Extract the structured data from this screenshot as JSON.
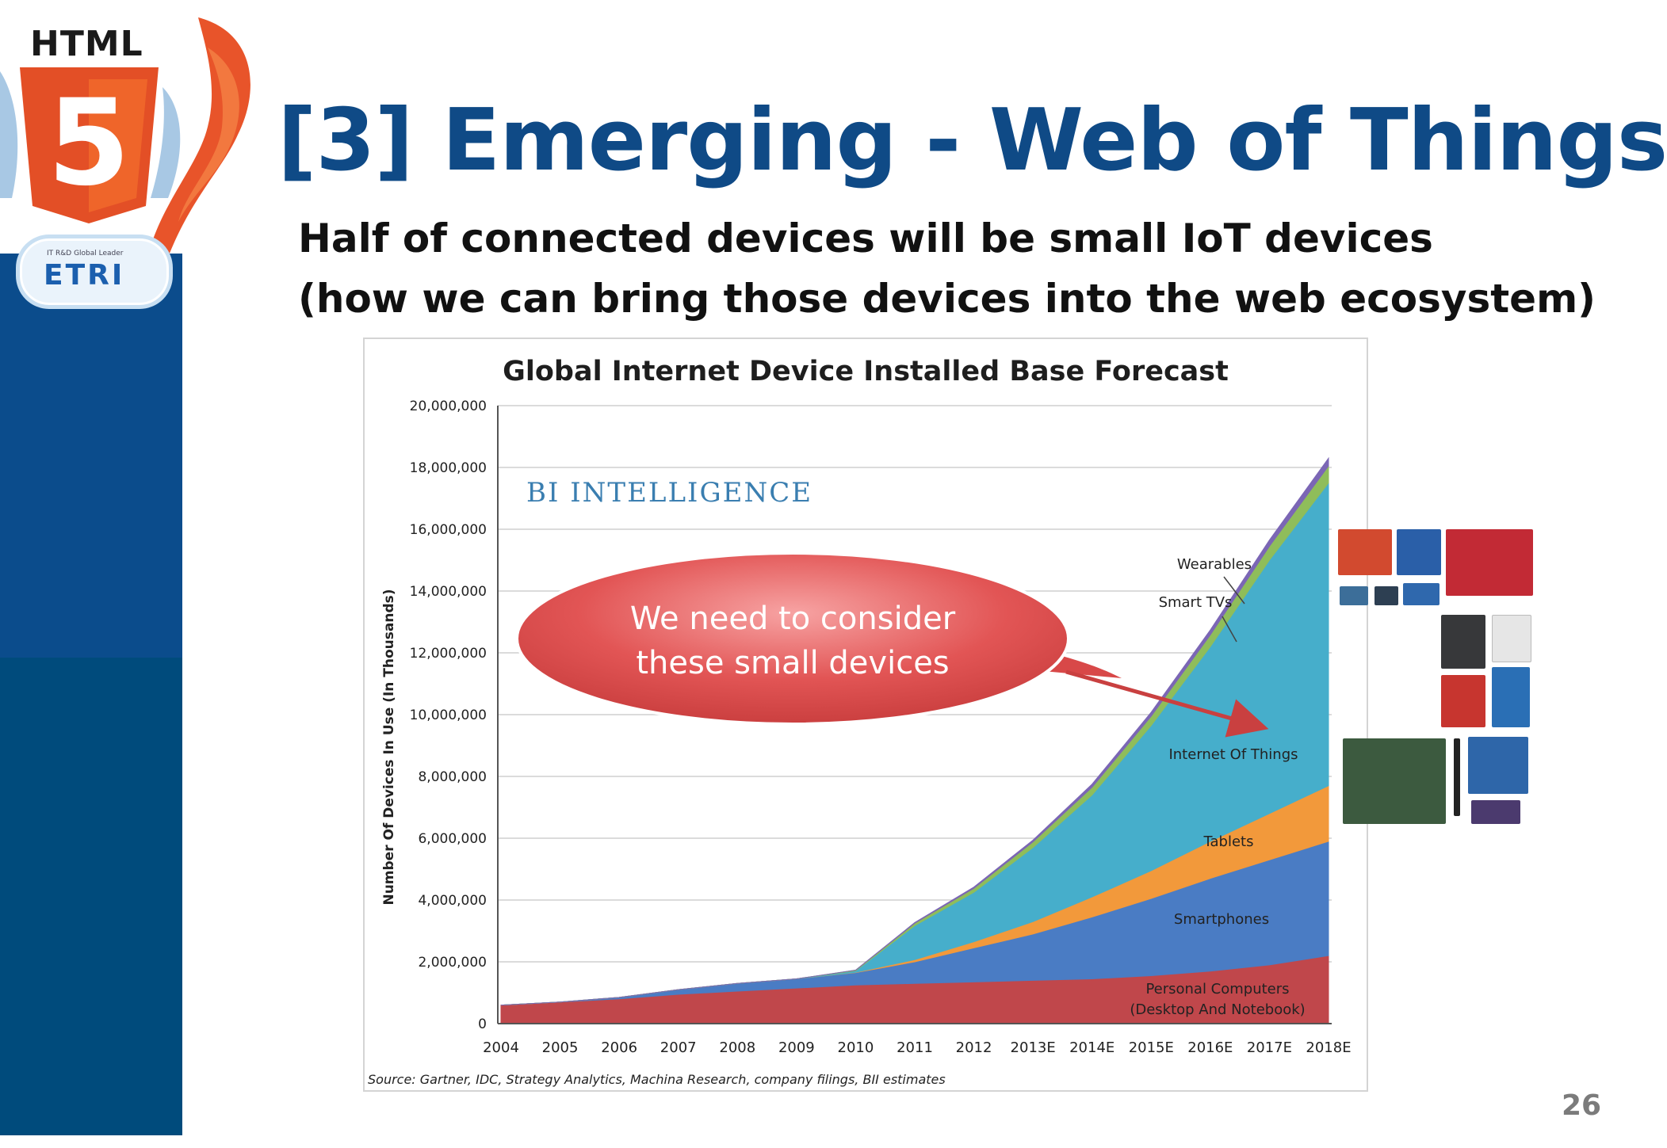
{
  "logo": {
    "html_label": "HTML",
    "html5_number": "5",
    "etri_tagline": "IT R&D Global Leader",
    "etri_label": "ETRI"
  },
  "slide": {
    "title": "[3] Emerging - Web of Things",
    "subtitle_line1": "Half of connected devices will be small IoT devices",
    "subtitle_line2": "(how we can bring those devices into the web ecosystem)",
    "page_number": "26"
  },
  "chart_data": {
    "type": "area",
    "stacked": true,
    "title": "Global Internet Device Installed Base Forecast",
    "brand": "BI INTELLIGENCE",
    "ylabel": "Number Of Devices In Use (In Thousands)",
    "xlabel": "",
    "source": "Source: Gartner, IDC, Strategy Analytics, Machina Research, company filings, BII estimates",
    "ylim": [
      0,
      20000000
    ],
    "yticks": [
      0,
      2000000,
      4000000,
      6000000,
      8000000,
      10000000,
      12000000,
      14000000,
      16000000,
      18000000,
      20000000
    ],
    "ytick_labels": [
      "0",
      "2,000,000",
      "4,000,000",
      "6,000,000",
      "8,000,000",
      "10,000,000",
      "12,000,000",
      "14,000,000",
      "16,000,000",
      "18,000,000",
      "20,000,000"
    ],
    "grid": true,
    "categories": [
      "2004",
      "2005",
      "2006",
      "2007",
      "2008",
      "2009",
      "2010",
      "2011",
      "2012",
      "2013E",
      "2014E",
      "2015E",
      "2016E",
      "2017E",
      "2018E"
    ],
    "series": [
      {
        "name": "Personal Computers (Desktop And Notebook)",
        "color": "#c0474b",
        "values": [
          600000,
          700000,
          800000,
          950000,
          1050000,
          1150000,
          1250000,
          1300000,
          1350000,
          1400000,
          1450000,
          1550000,
          1700000,
          1900000,
          2200000
        ]
      },
      {
        "name": "Smartphones",
        "color": "#4a7cc4",
        "values": [
          0,
          0,
          50000,
          150000,
          250000,
          300000,
          400000,
          700000,
          1100000,
          1500000,
          2000000,
          2500000,
          3000000,
          3400000,
          3700000
        ]
      },
      {
        "name": "Tablets",
        "color": "#f2993b",
        "values": [
          0,
          0,
          0,
          0,
          0,
          0,
          10000,
          70000,
          200000,
          400000,
          650000,
          900000,
          1200000,
          1500000,
          1800000
        ]
      },
      {
        "name": "Internet Of Things",
        "color": "#46aecb",
        "values": [
          0,
          0,
          0,
          0,
          0,
          0,
          50000,
          1100000,
          1600000,
          2400000,
          3300000,
          4700000,
          6300000,
          8200000,
          9800000
        ]
      },
      {
        "name": "Smart TVs",
        "color": "#8fbd5a",
        "values": [
          0,
          0,
          0,
          0,
          0,
          0,
          20000,
          80000,
          130000,
          180000,
          250000,
          300000,
          380000,
          450000,
          550000
        ]
      },
      {
        "name": "Wearables",
        "color": "#7b66b5",
        "values": [
          0,
          0,
          0,
          0,
          0,
          0,
          0,
          20000,
          40000,
          60000,
          100000,
          130000,
          160000,
          200000,
          250000
        ]
      }
    ],
    "callout": {
      "line1": "We need to consider",
      "line2": "these small devices",
      "fill": "#e25555",
      "arrow_color": "#c94040"
    }
  }
}
